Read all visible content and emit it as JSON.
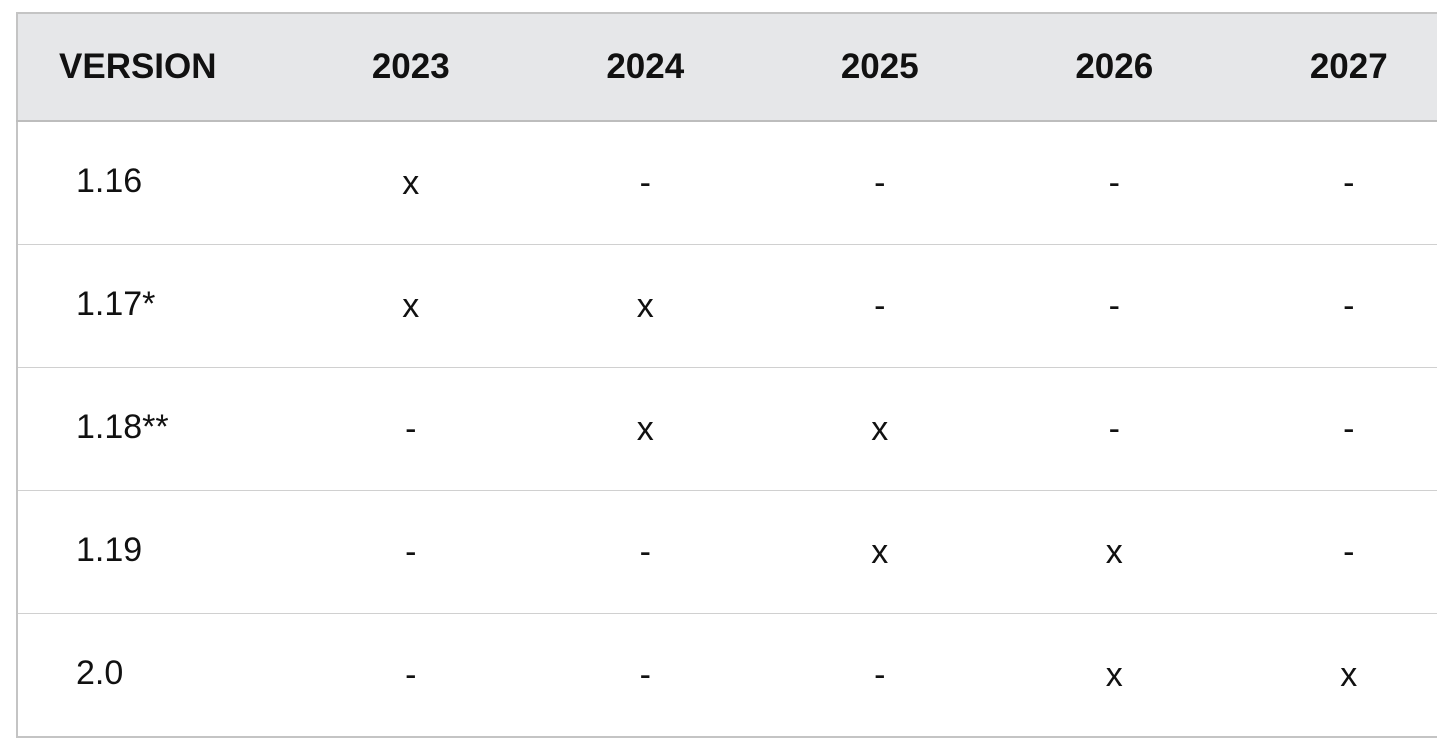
{
  "table": {
    "header": [
      "VERSION",
      "2023",
      "2024",
      "2025",
      "2026",
      "2027"
    ],
    "rows": [
      [
        "1.16",
        "x",
        "-",
        "-",
        "-",
        "-"
      ],
      [
        "1.17*",
        "x",
        "x",
        "-",
        "-",
        "-"
      ],
      [
        "1.18**",
        "-",
        "x",
        "x",
        "-",
        "-"
      ],
      [
        "1.19",
        "-",
        "-",
        "x",
        "x",
        "-"
      ],
      [
        "2.0",
        "-",
        "-",
        "-",
        "x",
        "x"
      ]
    ]
  }
}
